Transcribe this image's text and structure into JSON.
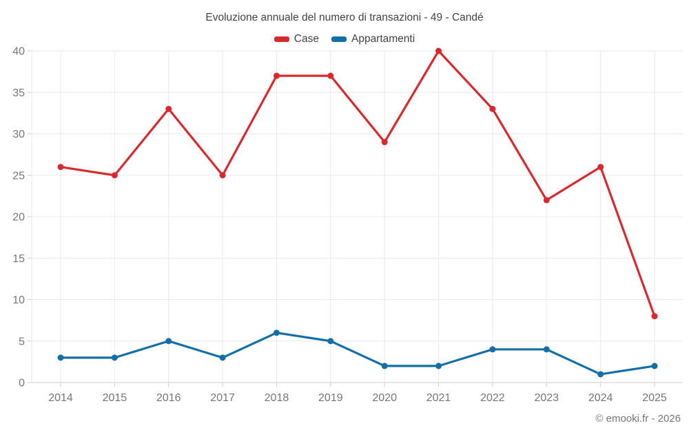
{
  "chart_data": {
    "type": "line",
    "title": "Evoluzione annuale del numero di transazioni - 49 - Candé",
    "categories": [
      "2014",
      "2015",
      "2016",
      "2017",
      "2018",
      "2019",
      "2020",
      "2021",
      "2022",
      "2023",
      "2024",
      "2025"
    ],
    "series": [
      {
        "name": "Case",
        "color": "#d8292e",
        "values": [
          26,
          25,
          33,
          25,
          37,
          37,
          29,
          40,
          33,
          22,
          26,
          8
        ]
      },
      {
        "name": "Appartamenti",
        "color": "#146fa6",
        "values": [
          3,
          3,
          5,
          3,
          6,
          5,
          2,
          2,
          4,
          4,
          1,
          2
        ]
      }
    ],
    "xlabel": "",
    "ylabel": "",
    "ylim": [
      0,
      40
    ],
    "ytick_step": 5,
    "grid": true,
    "legend_position": "top",
    "footer": "© emooki.fr - 2026",
    "colors": {
      "grid": "#e9e9e9",
      "axis": "#cccccc",
      "tick_label": "#757575",
      "title_text": "#424242",
      "legend_text": "#424242",
      "footer_text": "#757575",
      "background": "#ffffff"
    }
  }
}
